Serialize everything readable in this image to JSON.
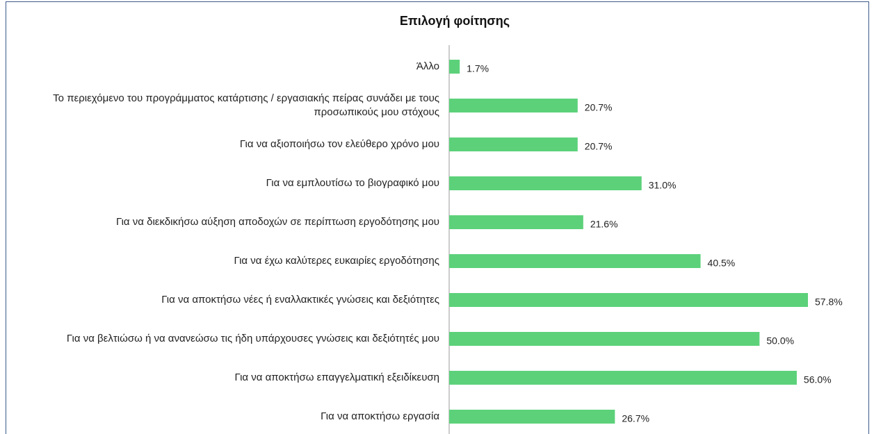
{
  "chart_data": {
    "type": "barh",
    "title": "Επιλογή φοίτησης",
    "categories": [
      "Άλλο",
      "Το περιεχόμενο του προγράμματος κατάρτισης / εργασιακής πείρας συνάδει με τους προσωπικούς μου στόχους",
      "Για να αξιοποιήσω τον ελεύθερο χρόνο μου",
      "Για να εμπλουτίσω το βιογραφικό μου",
      "Για να διεκδικήσω αύξηση αποδοχών σε περίπτωση εργοδότησης μου",
      "Για να έχω καλύτερες ευκαιρίες εργοδότησης",
      "Για να αποκτήσω νέες ή εναλλακτικές γνώσεις και δεξιότητες",
      "Για να βελτιώσω ή να ανανεώσω τις ήδη υπάρχουσες γνώσεις και δεξιότητές μου",
      "Για να αποκτήσω επαγγελματική εξειδίκευση",
      "Για να αποκτήσω εργασία"
    ],
    "values": [
      1.7,
      20.7,
      20.7,
      31.0,
      21.6,
      40.5,
      57.8,
      50.0,
      56.0,
      26.7
    ],
    "value_labels": [
      "1.7%",
      "20.7%",
      "20.7%",
      "31.0%",
      "21.6%",
      "40.5%",
      "57.8%",
      "50.0%",
      "56.0%",
      "26.7%"
    ],
    "color": "#5cd17a"
  }
}
